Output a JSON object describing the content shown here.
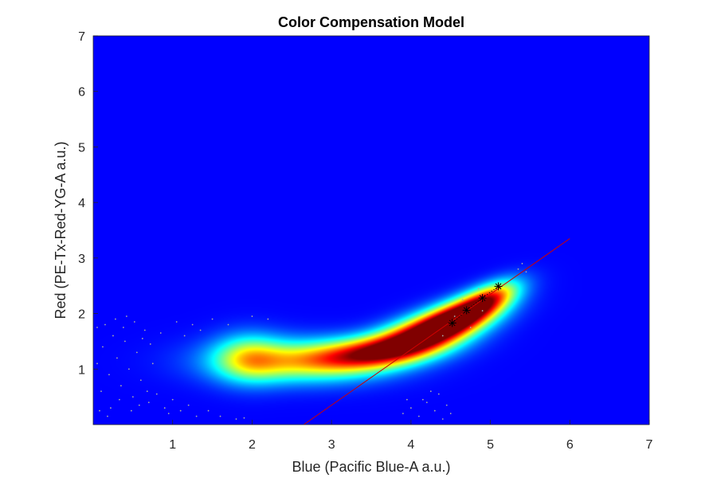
{
  "chart_data": {
    "type": "scatter",
    "title": "Color Compensation Model",
    "xlabel": "Blue (Pacific Blue-A a.u.)",
    "ylabel": "Red (PE-Tx-Red-YG-A a.u.)",
    "xlim": [
      0,
      7
    ],
    "ylim": [
      0,
      7
    ],
    "xticks": [
      1,
      2,
      3,
      4,
      5,
      6,
      7
    ],
    "yticks": [
      1,
      2,
      3,
      4,
      5,
      6,
      7
    ],
    "grid": false,
    "background_color": "#00008f",
    "density_colormap": "jet",
    "density_cores": [
      {
        "x": 4.2,
        "y": 1.65,
        "sx": 0.55,
        "sy": 0.22,
        "rot": 0.45,
        "w": 1.0
      },
      {
        "x": 4.65,
        "y": 2.0,
        "sx": 0.45,
        "sy": 0.18,
        "rot": 0.6,
        "w": 0.8
      },
      {
        "x": 5.0,
        "y": 2.3,
        "sx": 0.3,
        "sy": 0.15,
        "rot": 0.7,
        "w": 0.45
      },
      {
        "x": 3.5,
        "y": 1.3,
        "sx": 0.6,
        "sy": 0.2,
        "rot": 0.15,
        "w": 0.62
      },
      {
        "x": 2.6,
        "y": 1.15,
        "sx": 0.75,
        "sy": 0.27,
        "rot": 0.0,
        "w": 0.5
      },
      {
        "x": 1.95,
        "y": 1.2,
        "sx": 0.3,
        "sy": 0.3,
        "rot": 0.0,
        "w": 0.38
      }
    ],
    "fit_line": {
      "color": "#d00000",
      "points": [
        [
          2.65,
          0.0
        ],
        [
          6.0,
          3.35
        ]
      ]
    },
    "marker_points": {
      "color": "#000000",
      "marker": "asterisk",
      "points": [
        [
          4.52,
          1.83
        ],
        [
          4.7,
          2.06
        ],
        [
          4.9,
          2.28
        ],
        [
          5.1,
          2.49
        ]
      ]
    },
    "outlier_points": {
      "color": "#aaaaaa",
      "points": [
        [
          0.05,
          1.1
        ],
        [
          0.12,
          1.4
        ],
        [
          0.2,
          0.9
        ],
        [
          0.25,
          1.6
        ],
        [
          0.3,
          1.2
        ],
        [
          0.35,
          0.7
        ],
        [
          0.4,
          1.5
        ],
        [
          0.45,
          1.0
        ],
        [
          0.5,
          0.5
        ],
        [
          0.55,
          1.3
        ],
        [
          0.6,
          0.8
        ],
        [
          0.65,
          1.7
        ],
        [
          0.7,
          0.4
        ],
        [
          0.75,
          1.1
        ],
        [
          0.1,
          0.6
        ],
        [
          0.15,
          1.8
        ],
        [
          0.22,
          0.3
        ],
        [
          0.28,
          1.9
        ],
        [
          0.33,
          0.45
        ],
        [
          0.38,
          1.75
        ],
        [
          0.48,
          0.25
        ],
        [
          0.52,
          1.85
        ],
        [
          0.58,
          0.35
        ],
        [
          0.62,
          1.55
        ],
        [
          0.68,
          0.6
        ],
        [
          0.72,
          1.45
        ],
        [
          0.8,
          0.55
        ],
        [
          0.85,
          1.65
        ],
        [
          0.9,
          0.3
        ],
        [
          0.95,
          0.2
        ],
        [
          1.0,
          0.45
        ],
        [
          1.05,
          1.85
        ],
        [
          1.1,
          0.25
        ],
        [
          1.15,
          1.6
        ],
        [
          1.2,
          0.35
        ],
        [
          1.25,
          1.8
        ],
        [
          1.3,
          0.15
        ],
        [
          1.35,
          1.7
        ],
        [
          1.45,
          0.25
        ],
        [
          1.5,
          1.9
        ],
        [
          1.6,
          0.15
        ],
        [
          1.7,
          1.8
        ],
        [
          1.8,
          0.1
        ],
        [
          1.9,
          0.12
        ],
        [
          2.0,
          1.95
        ],
        [
          2.2,
          1.9
        ],
        [
          0.08,
          0.25
        ],
        [
          0.18,
          0.15
        ],
        [
          0.42,
          1.95
        ],
        [
          0.05,
          1.75
        ],
        [
          4.0,
          0.3
        ],
        [
          4.1,
          0.15
        ],
        [
          4.2,
          0.4
        ],
        [
          4.3,
          0.25
        ],
        [
          4.35,
          0.55
        ],
        [
          4.4,
          0.1
        ],
        [
          3.9,
          0.2
        ],
        [
          4.45,
          0.35
        ],
        [
          4.25,
          0.6
        ],
        [
          4.15,
          0.45
        ],
        [
          4.5,
          0.2
        ],
        [
          3.95,
          0.45
        ],
        [
          5.35,
          2.8
        ],
        [
          5.4,
          2.9
        ],
        [
          5.45,
          2.75
        ],
        [
          4.4,
          1.6
        ],
        [
          4.55,
          1.95
        ],
        [
          4.65,
          2.25
        ],
        [
          4.85,
          2.45
        ],
        [
          4.75,
          1.75
        ],
        [
          4.9,
          2.05
        ]
      ]
    }
  }
}
